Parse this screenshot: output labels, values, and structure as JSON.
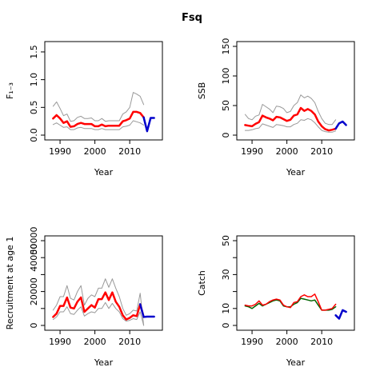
{
  "title": "Fsq",
  "colors": {
    "band": "#999999",
    "estimate": "#ff0000",
    "forecast": "#0000cc",
    "catch_model": "#006400",
    "catch_observed": "#ff0000"
  },
  "chart_data": [
    {
      "id": "panel-f",
      "type": "line",
      "title": "",
      "xlabel": "Year",
      "ylabel": "F₁₋₃",
      "xlim": [
        1987,
        2018
      ],
      "ylim": [
        0,
        1.6
      ],
      "xticks": [
        1990,
        2000,
        2010
      ],
      "xtick_labels": [
        "1990",
        "2000",
        "2010"
      ],
      "yticks": [
        0,
        0.5,
        1.0,
        1.5
      ],
      "ytick_labels": [
        "0.0",
        "0.5",
        "1.0",
        "1.5"
      ],
      "series": [
        {
          "role": "upper",
          "style": "band",
          "x": [
            1988,
            1989,
            1990,
            1991,
            1992,
            1993,
            1994,
            1995,
            1996,
            1997,
            1998,
            1999,
            2000,
            2001,
            2002,
            2003,
            2004,
            2005,
            2006,
            2007,
            2008,
            2009,
            2010,
            2011,
            2012,
            2013,
            2014
          ],
          "y": [
            0.52,
            0.6,
            0.48,
            0.35,
            0.38,
            0.25,
            0.26,
            0.32,
            0.34,
            0.3,
            0.3,
            0.31,
            0.26,
            0.26,
            0.3,
            0.25,
            0.26,
            0.26,
            0.26,
            0.26,
            0.38,
            0.42,
            0.5,
            0.77,
            0.74,
            0.7,
            0.55
          ]
        },
        {
          "role": "lower",
          "style": "band",
          "x": [
            1988,
            1989,
            1990,
            1991,
            1992,
            1993,
            1994,
            1995,
            1996,
            1997,
            1998,
            1999,
            2000,
            2001,
            2002,
            2003,
            2004,
            2005,
            2006,
            2007,
            2008,
            2009,
            2010,
            2011,
            2012,
            2013,
            2014
          ],
          "y": [
            0.19,
            0.22,
            0.18,
            0.14,
            0.15,
            0.1,
            0.1,
            0.13,
            0.14,
            0.12,
            0.12,
            0.12,
            0.1,
            0.1,
            0.12,
            0.1,
            0.1,
            0.1,
            0.1,
            0.1,
            0.15,
            0.16,
            0.18,
            0.26,
            0.24,
            0.22,
            0.18
          ]
        },
        {
          "role": "estimate",
          "style": "estimate",
          "x": [
            1988,
            1989,
            1990,
            1991,
            1992,
            1993,
            1994,
            1995,
            1996,
            1997,
            1998,
            1999,
            2000,
            2001,
            2002,
            2003,
            2004,
            2005,
            2006,
            2007,
            2008,
            2009,
            2010,
            2011,
            2012,
            2013,
            2014
          ],
          "y": [
            0.3,
            0.36,
            0.3,
            0.22,
            0.25,
            0.15,
            0.16,
            0.2,
            0.22,
            0.2,
            0.2,
            0.2,
            0.16,
            0.16,
            0.19,
            0.16,
            0.17,
            0.17,
            0.17,
            0.17,
            0.25,
            0.27,
            0.3,
            0.42,
            0.42,
            0.4,
            0.32
          ]
        },
        {
          "role": "forecast",
          "style": "forecast",
          "x": [
            2014,
            2015,
            2016,
            2017
          ],
          "y": [
            0.32,
            0.07,
            0.31,
            0.31
          ]
        }
      ]
    },
    {
      "id": "panel-ssb",
      "type": "line",
      "title": "",
      "xlabel": "Year",
      "ylabel": "SSB",
      "xlim": [
        1987,
        2018
      ],
      "ylim": [
        0,
        150
      ],
      "xticks": [
        1990,
        2000,
        2010
      ],
      "xtick_labels": [
        "1990",
        "2000",
        "2010"
      ],
      "yticks": [
        0,
        50,
        100,
        150
      ],
      "ytick_labels": [
        "0",
        "50",
        "100",
        "150"
      ],
      "series": [
        {
          "role": "upper",
          "style": "band",
          "x": [
            1988,
            1989,
            1990,
            1991,
            1992,
            1993,
            1994,
            1995,
            1996,
            1997,
            1998,
            1999,
            2000,
            2001,
            2002,
            2003,
            2004,
            2005,
            2006,
            2007,
            2008,
            2009,
            2010,
            2011,
            2012,
            2013,
            2014
          ],
          "y": [
            35,
            28,
            26,
            32,
            34,
            52,
            48,
            44,
            38,
            49,
            48,
            45,
            38,
            40,
            50,
            55,
            68,
            63,
            66,
            62,
            55,
            40,
            28,
            20,
            18,
            18,
            26
          ]
        },
        {
          "role": "lower",
          "style": "band",
          "x": [
            1988,
            1989,
            1990,
            1991,
            1992,
            1993,
            1994,
            1995,
            1996,
            1997,
            1998,
            1999,
            2000,
            2001,
            2002,
            2003,
            2004,
            2005,
            2006,
            2007,
            2008,
            2009,
            2010,
            2011,
            2012,
            2013,
            2014
          ],
          "y": [
            8,
            8,
            9,
            11,
            12,
            19,
            17,
            15,
            13,
            18,
            17,
            16,
            14,
            14,
            18,
            20,
            26,
            25,
            28,
            26,
            21,
            14,
            8,
            6,
            5,
            5,
            7
          ]
        },
        {
          "role": "estimate",
          "style": "estimate",
          "x": [
            1988,
            1989,
            1990,
            1991,
            1992,
            1993,
            1994,
            1995,
            1996,
            1997,
            1998,
            1999,
            2000,
            2001,
            2002,
            2003,
            2004,
            2005,
            2006,
            2007,
            2008,
            2009,
            2010,
            2011,
            2012,
            2013,
            2014
          ],
          "y": [
            17,
            16,
            15,
            19,
            22,
            33,
            30,
            28,
            25,
            31,
            30,
            27,
            24,
            26,
            33,
            35,
            46,
            41,
            44,
            41,
            35,
            23,
            15,
            10,
            8,
            9,
            11
          ]
        },
        {
          "role": "forecast",
          "style": "forecast",
          "x": [
            2014,
            2015,
            2016,
            2017
          ],
          "y": [
            11,
            20,
            23,
            17
          ]
        }
      ]
    },
    {
      "id": "panel-recruitment",
      "type": "line",
      "title": "",
      "xlabel": "Year",
      "ylabel": "Recruitment at age 1",
      "xlim": [
        1987,
        2018
      ],
      "ylim": [
        0,
        50000
      ],
      "xticks": [
        1990,
        2000,
        2010
      ],
      "xtick_labels": [
        "1990",
        "2000",
        "2010"
      ],
      "yticks": [
        0,
        10000,
        20000,
        30000,
        40000,
        50000
      ],
      "ytick_labels": [
        "0",
        "",
        "20000",
        "",
        "40000",
        "50000"
      ],
      "series": [
        {
          "role": "upper",
          "style": "band",
          "x": [
            1988,
            1989,
            1990,
            1991,
            1992,
            1993,
            1994,
            1995,
            1996,
            1997,
            1998,
            1999,
            2000,
            2001,
            2002,
            2003,
            2004,
            2005,
            2006,
            2007,
            2008,
            2009,
            2010,
            2011,
            2012,
            2013,
            2014
          ],
          "y": [
            9000,
            12000,
            17000,
            17000,
            23500,
            16000,
            15000,
            20000,
            23500,
            12000,
            16000,
            18000,
            17000,
            22000,
            22000,
            27500,
            22500,
            27500,
            22000,
            17000,
            10000,
            6000,
            7000,
            9000,
            8500,
            19000,
            0
          ]
        },
        {
          "role": "lower",
          "style": "band",
          "x": [
            1988,
            1989,
            1990,
            1991,
            1992,
            1993,
            1994,
            1995,
            1996,
            1997,
            1998,
            1999,
            2000,
            2001,
            2002,
            2003,
            2004,
            2005,
            2006,
            2007,
            2008,
            2009,
            2010,
            2011,
            2012,
            2013,
            2014
          ],
          "y": [
            3500,
            5000,
            8000,
            8000,
            11000,
            7000,
            6500,
            9000,
            11000,
            5500,
            7000,
            8000,
            7500,
            10000,
            10000,
            13500,
            10000,
            13000,
            10000,
            8000,
            4000,
            2500,
            3000,
            4000,
            3500,
            8000,
            0
          ]
        },
        {
          "role": "estimate",
          "style": "estimate",
          "x": [
            1988,
            1989,
            1990,
            1991,
            1992,
            1993,
            1994,
            1995,
            1996,
            1997,
            1998,
            1999,
            2000,
            2001,
            2002,
            2003,
            2004,
            2005,
            2006,
            2007,
            2008,
            2009,
            2010,
            2011,
            2012,
            2013,
            2014
          ],
          "y": [
            5000,
            7000,
            11500,
            11500,
            16500,
            10500,
            10000,
            14000,
            16500,
            8000,
            10000,
            12000,
            10500,
            15500,
            15500,
            19500,
            15000,
            19500,
            14000,
            11000,
            6000,
            3500,
            4500,
            6000,
            5500,
            12500,
            5000
          ]
        },
        {
          "role": "forecast",
          "style": "forecast",
          "x": [
            2013,
            2014,
            2015,
            2016,
            2017
          ],
          "y": [
            12500,
            5000,
            5200,
            5200,
            5200
          ]
        }
      ]
    },
    {
      "id": "panel-catch",
      "type": "line",
      "title": "",
      "xlabel": "Year",
      "ylabel": "Catch",
      "xlim": [
        1987,
        2018
      ],
      "ylim": [
        0,
        50
      ],
      "xticks": [
        1990,
        2000,
        2010
      ],
      "xtick_labels": [
        "1990",
        "2000",
        "2010"
      ],
      "yticks": [
        0,
        10,
        20,
        30,
        40,
        50
      ],
      "ytick_labels": [
        "0",
        "10",
        "",
        "30",
        "",
        "50"
      ],
      "series": [
        {
          "role": "model",
          "style": "catch_model",
          "x": [
            1988,
            1989,
            1990,
            1991,
            1992,
            1993,
            1994,
            1995,
            1996,
            1997,
            1998,
            1999,
            2000,
            2001,
            2002,
            2003,
            2004,
            2005,
            2006,
            2007,
            2008,
            2009,
            2010,
            2011,
            2012,
            2013,
            2014
          ],
          "y": [
            11.5,
            11,
            10,
            11.5,
            13,
            11.5,
            12.5,
            13.5,
            14.5,
            15,
            14.5,
            11.5,
            11,
            11,
            12.5,
            13.5,
            16,
            15.5,
            15,
            14.5,
            15,
            12,
            9,
            9,
            9,
            9.5,
            11
          ]
        },
        {
          "role": "observed",
          "style": "catch_observed",
          "x": [
            1988,
            1989,
            1990,
            1991,
            1992,
            1993,
            1994,
            1995,
            1996,
            1997,
            1998,
            1999,
            2000,
            2001,
            2002,
            2003,
            2004,
            2005,
            2006,
            2007,
            2008,
            2009,
            2010,
            2011,
            2012,
            2013,
            2014
          ],
          "y": [
            12,
            11.5,
            11.5,
            12.5,
            14.5,
            12,
            12.5,
            14,
            15,
            15.5,
            15,
            12,
            11,
            10.5,
            13.5,
            14,
            17,
            18,
            17,
            17,
            18.5,
            14,
            9,
            9,
            9.5,
            10,
            12.5
          ]
        },
        {
          "role": "forecast",
          "style": "forecast",
          "x": [
            2014,
            2015,
            2016,
            2017
          ],
          "y": [
            6,
            4,
            9,
            8
          ]
        }
      ]
    }
  ]
}
